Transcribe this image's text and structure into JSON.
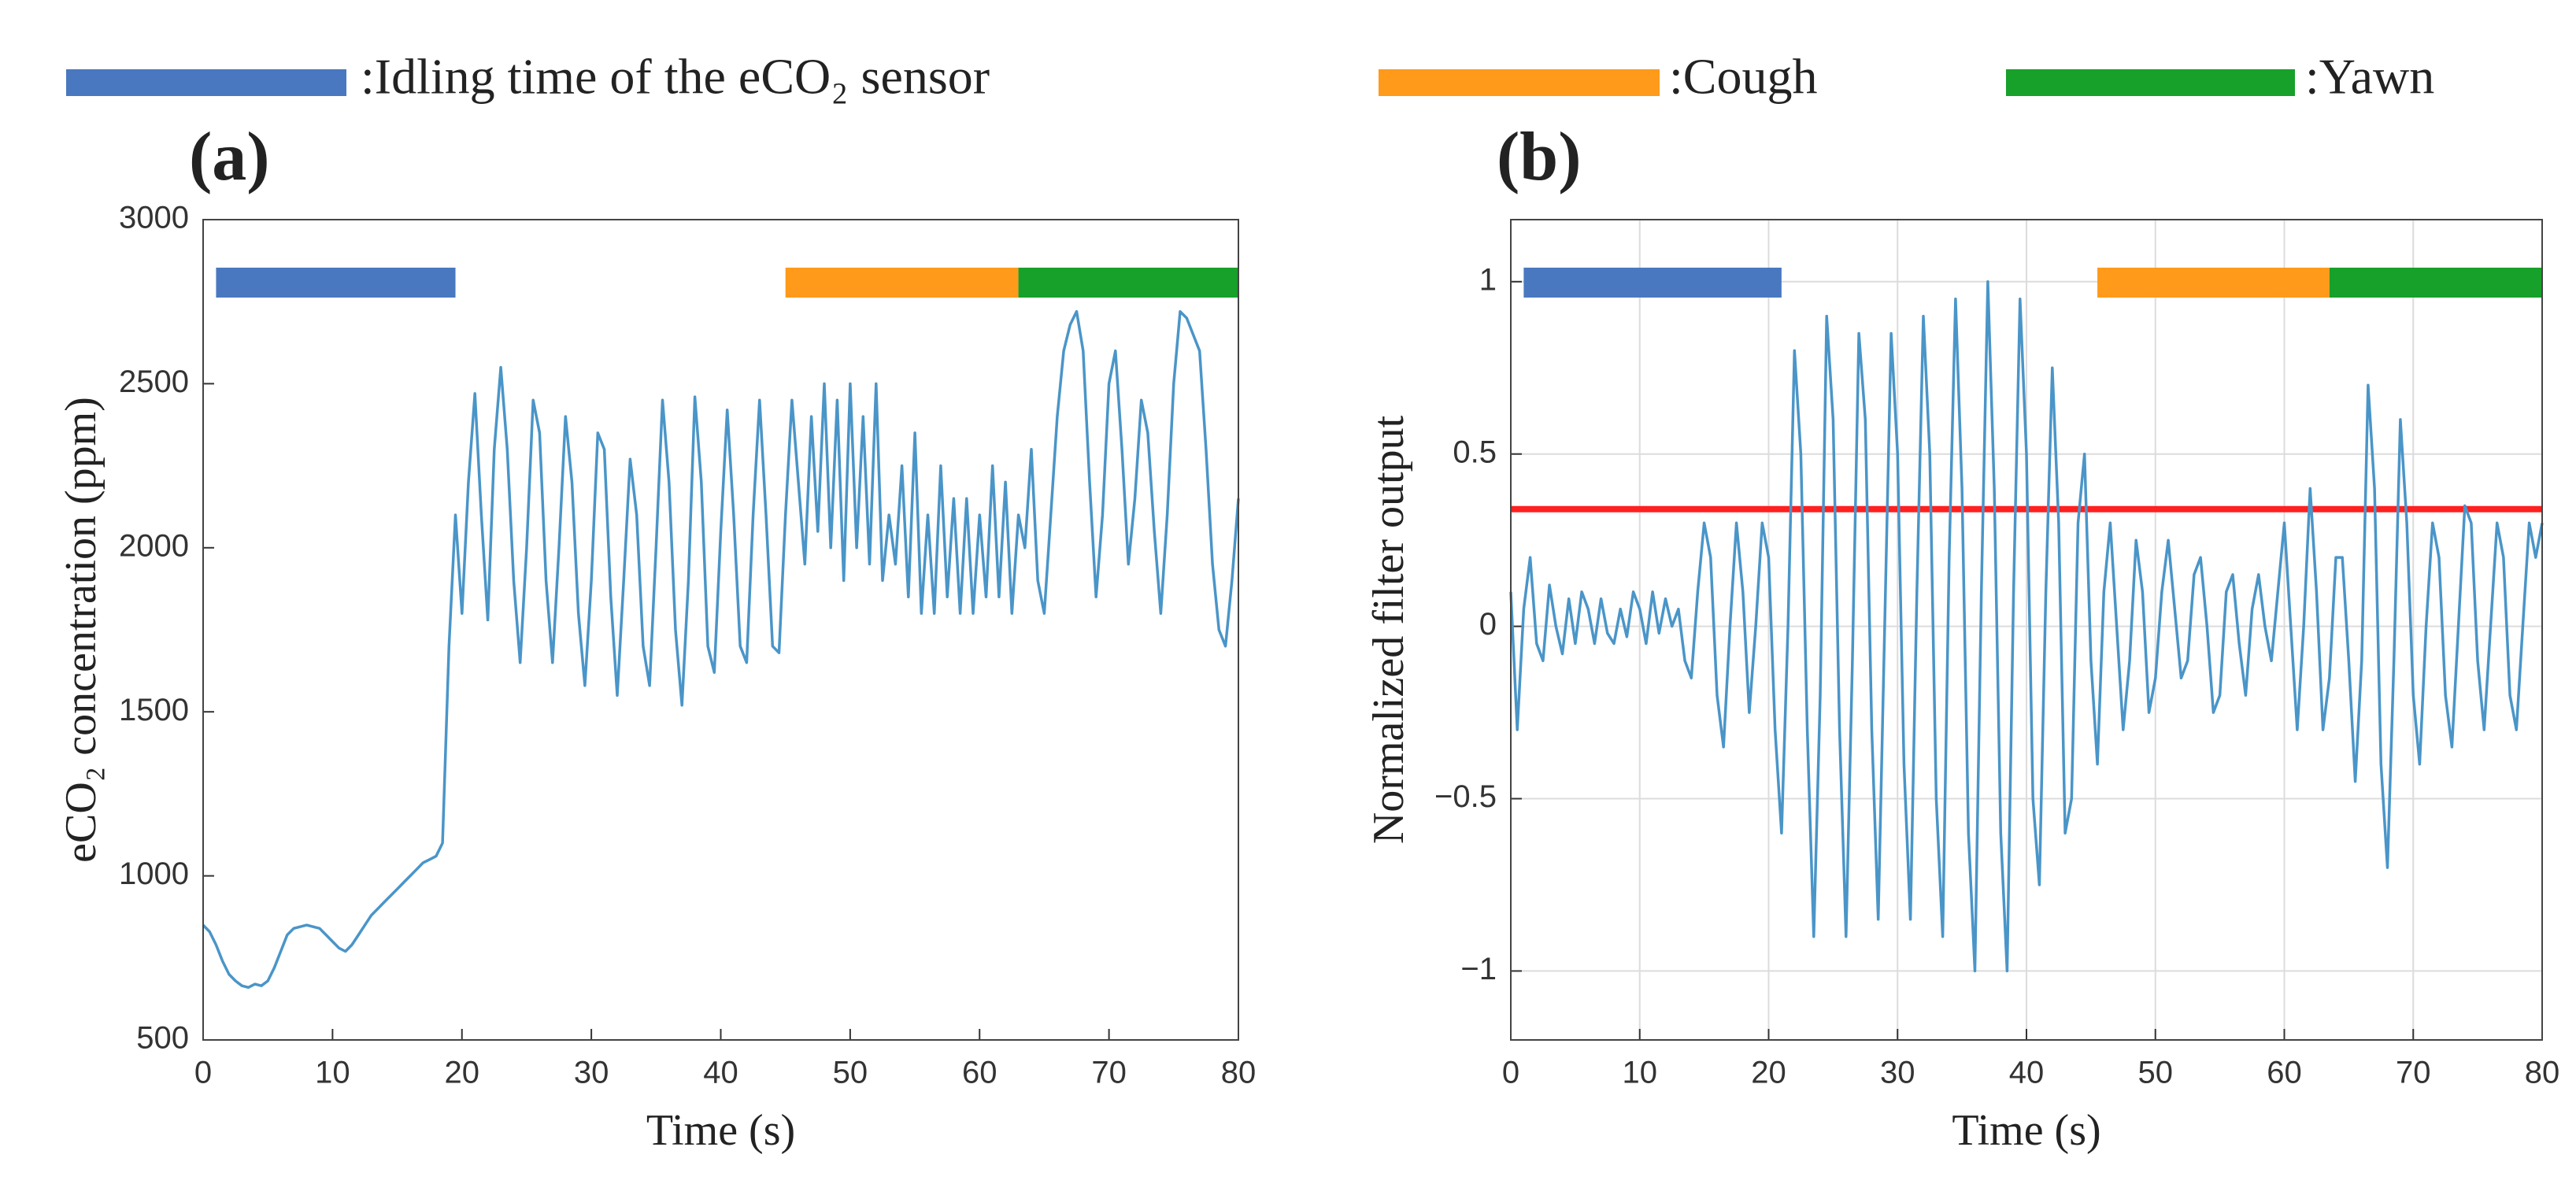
{
  "legend": [
    {
      "label": ":Idling time of the eCO₂ sensor",
      "color": "#4a78c0"
    },
    {
      "label": ":Cough",
      "color": "#ff9a1a"
    },
    {
      "label": ":Yawn",
      "color": "#17a02a"
    }
  ],
  "chart_data": [
    {
      "type": "line",
      "title": "(a)",
      "xlabel": "Time (s)",
      "ylabel": "eCO₂ concentration (ppm)",
      "xlim": [
        0,
        80
      ],
      "xticks": [
        0,
        10,
        20,
        30,
        40,
        50,
        60,
        70,
        80
      ],
      "ylim": [
        500,
        3000
      ],
      "yticks": [
        500,
        1000,
        1500,
        2000,
        2500,
        3000
      ],
      "grid": false,
      "intervals": [
        {
          "start": 1,
          "end": 19.5,
          "color": "#4a78c0"
        },
        {
          "start": 45,
          "end": 63,
          "color": "#ff9a1a"
        },
        {
          "start": 63,
          "end": 80,
          "color": "#17a02a"
        }
      ],
      "x": [
        0,
        0.5,
        1,
        1.5,
        2,
        2.5,
        3,
        3.5,
        4,
        4.5,
        5,
        5.5,
        6,
        6.5,
        7,
        7.5,
        8,
        8.5,
        9,
        9.5,
        10,
        10.5,
        11,
        11.5,
        12,
        12.5,
        13,
        13.5,
        14,
        14.5,
        15,
        15.5,
        16,
        16.5,
        17,
        17.5,
        18,
        18.5,
        19,
        19.5,
        20,
        20.5,
        21,
        21.5,
        22,
        22.5,
        23,
        23.5,
        24,
        24.5,
        25,
        25.5,
        26,
        26.5,
        27,
        27.5,
        28,
        28.5,
        29,
        29.5,
        30,
        30.5,
        31,
        31.5,
        32,
        32.5,
        33,
        33.5,
        34,
        34.5,
        35,
        35.5,
        36,
        36.5,
        37,
        37.5,
        38,
        38.5,
        39,
        39.5,
        40,
        40.5,
        41,
        41.5,
        42,
        42.5,
        43,
        43.5,
        44,
        44.5,
        45,
        45.5,
        46,
        46.5,
        47,
        47.5,
        48,
        48.5,
        49,
        49.5,
        50,
        50.5,
        51,
        51.5,
        52,
        52.5,
        53,
        53.5,
        54,
        54.5,
        55,
        55.5,
        56,
        56.5,
        57,
        57.5,
        58,
        58.5,
        59,
        59.5,
        60,
        60.5,
        61,
        61.5,
        62,
        62.5,
        63,
        63.5,
        64,
        64.5,
        65,
        65.5,
        66,
        66.5,
        67,
        67.5,
        68,
        68.5,
        69,
        69.5,
        70,
        70.5,
        71,
        71.5,
        72,
        72.5,
        73,
        73.5,
        74,
        74.5,
        75,
        75.5,
        76,
        76.5,
        77,
        77.5,
        78,
        78.5,
        79,
        79.5,
        80
      ],
      "series": [
        {
          "color": "#4a95c8",
          "values": [
            850,
            830,
            790,
            740,
            700,
            680,
            665,
            660,
            670,
            665,
            680,
            720,
            770,
            820,
            840,
            845,
            850,
            845,
            840,
            820,
            800,
            780,
            770,
            790,
            820,
            850,
            880,
            900,
            920,
            940,
            960,
            980,
            1000,
            1020,
            1040,
            1050,
            1060,
            1100,
            1700,
            2100,
            1800,
            2200,
            2470,
            2100,
            1780,
            2300,
            2550,
            2300,
            1900,
            1650,
            2000,
            2450,
            2350,
            1900,
            1650,
            2000,
            2400,
            2200,
            1800,
            1580,
            1900,
            2350,
            2300,
            1850,
            1550,
            1900,
            2270,
            2100,
            1700,
            1580,
            2000,
            2450,
            2200,
            1750,
            1520,
            1900,
            2460,
            2200,
            1700,
            1620,
            2050,
            2420,
            2100,
            1700,
            1650,
            2100,
            2450,
            2100,
            1700,
            1680,
            2100,
            2450,
            2200,
            1950,
            2400,
            2050,
            2500,
            2000,
            2450,
            1900,
            2500,
            2000,
            2400,
            1950,
            2500,
            1900,
            2100,
            1950,
            2250,
            1850,
            2350,
            1800,
            2100,
            1800,
            2250,
            1850,
            2150,
            1800,
            2150,
            1800,
            2100,
            1850,
            2250,
            1850,
            2200,
            1800,
            2100,
            2000,
            2300,
            1900,
            1800,
            2100,
            2400,
            2600,
            2680,
            2720,
            2600,
            2200,
            1850,
            2100,
            2500,
            2600,
            2300,
            1950,
            2150,
            2450,
            2350,
            2050,
            1800,
            2100,
            2500,
            2720,
            2700,
            2650,
            2600,
            2300,
            1950,
            1750,
            1700,
            1900,
            2150
          ]
        }
      ]
    },
    {
      "type": "line",
      "title": "(b)",
      "xlabel": "Time (s)",
      "ylabel": "Normalized filter output",
      "xlim": [
        0,
        80
      ],
      "xticks": [
        0,
        10,
        20,
        30,
        40,
        50,
        60,
        70,
        80
      ],
      "ylim": [
        -1.2,
        1.18
      ],
      "yticks": [
        {
          "value": -1,
          "label": "−1"
        },
        {
          "value": -0.5,
          "label": "−0.5"
        },
        0,
        0.5,
        1
      ],
      "grid": true,
      "hline": {
        "value": 0.34,
        "color": "#ff2020"
      },
      "intervals": [
        {
          "start": 1,
          "end": 21,
          "color": "#4a78c0"
        },
        {
          "start": 45.5,
          "end": 63.5,
          "color": "#ff9a1a"
        },
        {
          "start": 63.5,
          "end": 80,
          "color": "#17a02a"
        }
      ],
      "x": [
        0,
        0.5,
        1,
        1.5,
        2,
        2.5,
        3,
        3.5,
        4,
        4.5,
        5,
        5.5,
        6,
        6.5,
        7,
        7.5,
        8,
        8.5,
        9,
        9.5,
        10,
        10.5,
        11,
        11.5,
        12,
        12.5,
        13,
        13.5,
        14,
        14.5,
        15,
        15.5,
        16,
        16.5,
        17,
        17.5,
        18,
        18.5,
        19,
        19.5,
        20,
        20.5,
        21,
        21.5,
        22,
        22.5,
        23,
        23.5,
        24,
        24.5,
        25,
        25.5,
        26,
        26.5,
        27,
        27.5,
        28,
        28.5,
        29,
        29.5,
        30,
        30.5,
        31,
        31.5,
        32,
        32.5,
        33,
        33.5,
        34,
        34.5,
        35,
        35.5,
        36,
        36.5,
        37,
        37.5,
        38,
        38.5,
        39,
        39.5,
        40,
        40.5,
        41,
        41.5,
        42,
        42.5,
        43,
        43.5,
        44,
        44.5,
        45,
        45.5,
        46,
        46.5,
        47,
        47.5,
        48,
        48.5,
        49,
        49.5,
        50,
        50.5,
        51,
        51.5,
        52,
        52.5,
        53,
        53.5,
        54,
        54.5,
        55,
        55.5,
        56,
        56.5,
        57,
        57.5,
        58,
        58.5,
        59,
        59.5,
        60,
        60.5,
        61,
        61.5,
        62,
        62.5,
        63,
        63.5,
        64,
        64.5,
        65,
        65.5,
        66,
        66.5,
        67,
        67.5,
        68,
        68.5,
        69,
        69.5,
        70,
        70.5,
        71,
        71.5,
        72,
        72.5,
        73,
        73.5,
        74,
        74.5,
        75,
        75.5,
        76,
        76.5,
        77,
        77.5,
        78,
        78.5,
        79,
        79.5,
        80
      ],
      "series": [
        {
          "color": "#4a95c8",
          "values": [
            0.1,
            -0.3,
            0.05,
            0.2,
            -0.05,
            -0.1,
            0.12,
            0.0,
            -0.08,
            0.08,
            -0.05,
            0.1,
            0.05,
            -0.05,
            0.08,
            -0.02,
            -0.05,
            0.05,
            -0.03,
            0.1,
            0.05,
            -0.05,
            0.1,
            -0.02,
            0.08,
            0.0,
            0.05,
            -0.1,
            -0.15,
            0.1,
            0.3,
            0.2,
            -0.2,
            -0.35,
            0.0,
            0.3,
            0.1,
            -0.25,
            0.0,
            0.3,
            0.2,
            -0.3,
            -0.6,
            0.0,
            0.8,
            0.5,
            -0.3,
            -0.9,
            -0.2,
            0.9,
            0.6,
            -0.3,
            -0.9,
            -0.1,
            0.85,
            0.6,
            -0.3,
            -0.85,
            0.0,
            0.85,
            0.5,
            -0.4,
            -0.85,
            0.1,
            0.9,
            0.5,
            -0.5,
            -0.9,
            0.2,
            0.95,
            0.4,
            -0.6,
            -1.0,
            0.1,
            1.0,
            0.4,
            -0.6,
            -1.0,
            0.1,
            0.95,
            0.5,
            -0.5,
            -0.75,
            0.1,
            0.75,
            0.3,
            -0.6,
            -0.5,
            0.3,
            0.5,
            -0.1,
            -0.4,
            0.1,
            0.3,
            0.0,
            -0.3,
            -0.1,
            0.25,
            0.1,
            -0.25,
            -0.15,
            0.1,
            0.25,
            0.05,
            -0.15,
            -0.1,
            0.15,
            0.2,
            0.0,
            -0.25,
            -0.2,
            0.1,
            0.15,
            -0.05,
            -0.2,
            0.05,
            0.15,
            0.0,
            -0.1,
            0.1,
            0.3,
            0.0,
            -0.3,
            0.0,
            0.4,
            0.1,
            -0.3,
            -0.15,
            0.2,
            0.2,
            -0.1,
            -0.45,
            -0.1,
            0.7,
            0.4,
            -0.4,
            -0.7,
            -0.1,
            0.6,
            0.3,
            -0.2,
            -0.4,
            0.0,
            0.3,
            0.2,
            -0.2,
            -0.35,
            0.0,
            0.35,
            0.3,
            -0.1,
            -0.3,
            0.0,
            0.3,
            0.2,
            -0.2,
            -0.3,
            0.0,
            0.3,
            0.2,
            0.3
          ]
        }
      ]
    }
  ]
}
